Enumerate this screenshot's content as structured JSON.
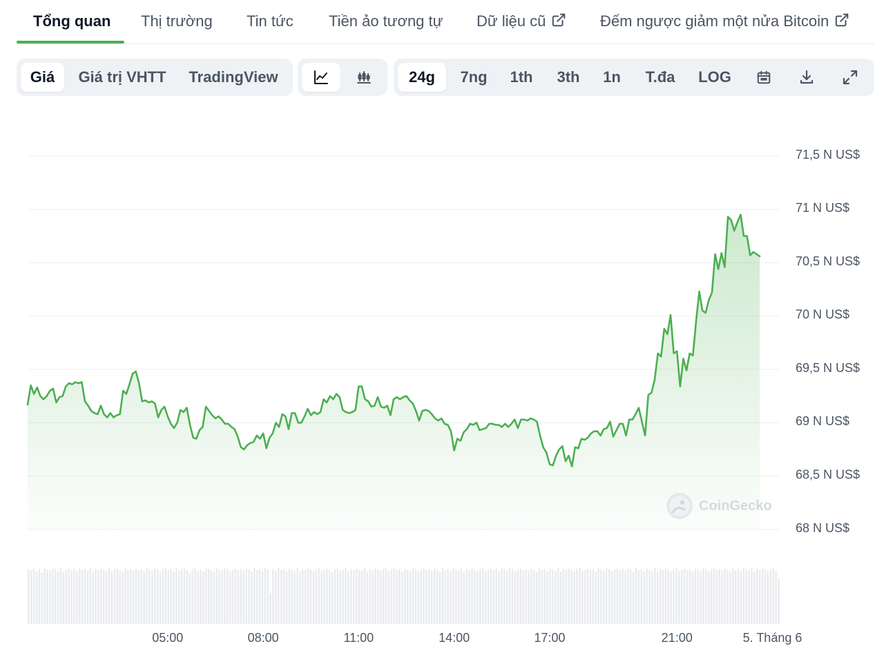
{
  "tabs": [
    {
      "label": "Tổng quan",
      "active": true
    },
    {
      "label": "Thị trường",
      "active": false
    },
    {
      "label": "Tin tức",
      "active": false
    },
    {
      "label": "Tiền ảo tương tự",
      "active": false
    },
    {
      "label": "Dữ liệu cũ",
      "active": false,
      "external": true
    },
    {
      "label": "Đếm ngược giảm một nửa Bitcoin",
      "active": false,
      "external": true
    }
  ],
  "toolbar": {
    "view_modes": [
      {
        "label": "Giá",
        "selected": true
      },
      {
        "label": "Giá trị VHTT",
        "selected": false
      },
      {
        "label": "TradingView",
        "selected": false
      }
    ],
    "chart_types": [
      {
        "icon": "line-chart-icon",
        "selected": true
      },
      {
        "icon": "candlestick-chart-icon",
        "selected": false
      }
    ],
    "ranges": [
      {
        "label": "24g",
        "selected": true
      },
      {
        "label": "7ng",
        "selected": false
      },
      {
        "label": "1th",
        "selected": false
      },
      {
        "label": "3th",
        "selected": false
      },
      {
        "label": "1n",
        "selected": false
      },
      {
        "label": "T.đa",
        "selected": false
      },
      {
        "label": "LOG",
        "selected": false
      }
    ],
    "actions": [
      {
        "icon": "calendar-icon"
      },
      {
        "icon": "download-icon"
      },
      {
        "icon": "expand-icon"
      }
    ]
  },
  "watermark": "CoinGecko",
  "chart_data": {
    "type": "area",
    "line_color": "#4caf50",
    "fill_color": "#4caf50",
    "y_ticks": [
      {
        "value": 71500,
        "label": "71,5 N US$"
      },
      {
        "value": 71000,
        "label": "71 N US$"
      },
      {
        "value": 70500,
        "label": "70,5 N US$"
      },
      {
        "value": 70000,
        "label": "70 N US$"
      },
      {
        "value": 69500,
        "label": "69,5 N US$"
      },
      {
        "value": 69000,
        "label": "69 N US$"
      },
      {
        "value": 68500,
        "label": "68,5 N US$"
      },
      {
        "value": 68000,
        "label": "68 N US$"
      }
    ],
    "ylim": [
      68000,
      71500
    ],
    "x_ticks": [
      {
        "hour": 5,
        "label": "05:00"
      },
      {
        "hour": 8,
        "label": "08:00"
      },
      {
        "hour": 11,
        "label": "11:00"
      },
      {
        "hour": 14,
        "label": "14:00"
      },
      {
        "hour": 17,
        "label": "17:00"
      },
      {
        "hour": 21,
        "label": "21:00"
      },
      {
        "hour": 24,
        "label": "5. Tháng 6"
      }
    ],
    "xlim": [
      0.6,
      24.25
    ],
    "price_series": [
      [
        0.6,
        69170
      ],
      [
        0.7,
        69350
      ],
      [
        0.8,
        69270
      ],
      [
        0.9,
        69330
      ],
      [
        1.0,
        69250
      ],
      [
        1.1,
        69220
      ],
      [
        1.2,
        69250
      ],
      [
        1.3,
        69300
      ],
      [
        1.4,
        69320
      ],
      [
        1.5,
        69190
      ],
      [
        1.6,
        69240
      ],
      [
        1.7,
        69250
      ],
      [
        1.8,
        69340
      ],
      [
        1.9,
        69370
      ],
      [
        2.0,
        69360
      ],
      [
        2.1,
        69380
      ],
      [
        2.2,
        69370
      ],
      [
        2.3,
        69380
      ],
      [
        2.4,
        69200
      ],
      [
        2.5,
        69160
      ],
      [
        2.6,
        69110
      ],
      [
        2.7,
        69090
      ],
      [
        2.8,
        69080
      ],
      [
        2.9,
        69160
      ],
      [
        3.0,
        69080
      ],
      [
        3.1,
        69050
      ],
      [
        3.2,
        69090
      ],
      [
        3.3,
        69050
      ],
      [
        3.4,
        69070
      ],
      [
        3.5,
        69080
      ],
      [
        3.6,
        69300
      ],
      [
        3.7,
        69270
      ],
      [
        3.8,
        69360
      ],
      [
        3.9,
        69460
      ],
      [
        4.0,
        69480
      ],
      [
        4.1,
        69370
      ],
      [
        4.2,
        69200
      ],
      [
        4.3,
        69210
      ],
      [
        4.4,
        69190
      ],
      [
        4.5,
        69200
      ],
      [
        4.6,
        69180
      ],
      [
        4.7,
        69050
      ],
      [
        4.8,
        69120
      ],
      [
        4.9,
        69150
      ],
      [
        5.0,
        69060
      ],
      [
        5.1,
        68990
      ],
      [
        5.2,
        68950
      ],
      [
        5.3,
        69000
      ],
      [
        5.4,
        69120
      ],
      [
        5.5,
        69100
      ],
      [
        5.6,
        69140
      ],
      [
        5.7,
        68980
      ],
      [
        5.8,
        68860
      ],
      [
        5.9,
        68850
      ],
      [
        6.0,
        68930
      ],
      [
        6.1,
        68960
      ],
      [
        6.2,
        69150
      ],
      [
        6.3,
        69110
      ],
      [
        6.4,
        69070
      ],
      [
        6.5,
        69040
      ],
      [
        6.6,
        69060
      ],
      [
        6.7,
        69030
      ],
      [
        6.8,
        68990
      ],
      [
        6.9,
        68990
      ],
      [
        7.0,
        68960
      ],
      [
        7.1,
        68940
      ],
      [
        7.2,
        68870
      ],
      [
        7.3,
        68770
      ],
      [
        7.4,
        68750
      ],
      [
        7.5,
        68790
      ],
      [
        7.6,
        68810
      ],
      [
        7.7,
        68820
      ],
      [
        7.8,
        68880
      ],
      [
        7.9,
        68850
      ],
      [
        8.0,
        68900
      ],
      [
        8.1,
        68760
      ],
      [
        8.2,
        68860
      ],
      [
        8.3,
        68900
      ],
      [
        8.4,
        69000
      ],
      [
        8.5,
        68960
      ],
      [
        8.6,
        69080
      ],
      [
        8.7,
        69060
      ],
      [
        8.8,
        68940
      ],
      [
        8.9,
        69090
      ],
      [
        9.0,
        69090
      ],
      [
        9.1,
        69000
      ],
      [
        9.2,
        69000
      ],
      [
        9.3,
        69060
      ],
      [
        9.4,
        69130
      ],
      [
        9.5,
        69070
      ],
      [
        9.6,
        69100
      ],
      [
        9.7,
        69080
      ],
      [
        9.8,
        69100
      ],
      [
        9.9,
        69220
      ],
      [
        10.0,
        69190
      ],
      [
        10.1,
        69250
      ],
      [
        10.2,
        69220
      ],
      [
        10.3,
        69270
      ],
      [
        10.4,
        69240
      ],
      [
        10.5,
        69120
      ],
      [
        10.6,
        69100
      ],
      [
        10.7,
        69090
      ],
      [
        10.8,
        69100
      ],
      [
        10.9,
        69120
      ],
      [
        11.0,
        69340
      ],
      [
        11.1,
        69340
      ],
      [
        11.2,
        69220
      ],
      [
        11.3,
        69200
      ],
      [
        11.4,
        69150
      ],
      [
        11.5,
        69160
      ],
      [
        11.6,
        69240
      ],
      [
        11.7,
        69150
      ],
      [
        11.8,
        69140
      ],
      [
        11.9,
        69160
      ],
      [
        12.0,
        69070
      ],
      [
        12.1,
        69220
      ],
      [
        12.2,
        69240
      ],
      [
        12.3,
        69220
      ],
      [
        12.4,
        69240
      ],
      [
        12.5,
        69250
      ],
      [
        12.6,
        69210
      ],
      [
        12.7,
        69180
      ],
      [
        12.8,
        69110
      ],
      [
        12.9,
        69020
      ],
      [
        13.0,
        69110
      ],
      [
        13.1,
        69120
      ],
      [
        13.2,
        69110
      ],
      [
        13.3,
        69080
      ],
      [
        13.4,
        69040
      ],
      [
        13.5,
        69020
      ],
      [
        13.6,
        69040
      ],
      [
        13.7,
        68990
      ],
      [
        13.8,
        68980
      ],
      [
        13.9,
        68920
      ],
      [
        14.0,
        68740
      ],
      [
        14.1,
        68850
      ],
      [
        14.2,
        68830
      ],
      [
        14.3,
        68910
      ],
      [
        14.4,
        68940
      ],
      [
        14.5,
        68990
      ],
      [
        14.6,
        68980
      ],
      [
        14.7,
        69000
      ],
      [
        14.8,
        68930
      ],
      [
        14.9,
        68940
      ],
      [
        15.0,
        68950
      ],
      [
        15.1,
        68990
      ],
      [
        15.2,
        68990
      ],
      [
        15.3,
        68980
      ],
      [
        15.4,
        68980
      ],
      [
        15.5,
        68960
      ],
      [
        15.6,
        68990
      ],
      [
        15.7,
        68960
      ],
      [
        15.8,
        68990
      ],
      [
        15.9,
        69030
      ],
      [
        16.0,
        68950
      ],
      [
        16.1,
        69030
      ],
      [
        16.2,
        69030
      ],
      [
        16.3,
        69020
      ],
      [
        16.4,
        69040
      ],
      [
        16.5,
        69030
      ],
      [
        16.6,
        69010
      ],
      [
        16.7,
        68880
      ],
      [
        16.8,
        68770
      ],
      [
        16.9,
        68720
      ],
      [
        17.0,
        68610
      ],
      [
        17.1,
        68600
      ],
      [
        17.2,
        68690
      ],
      [
        17.3,
        68750
      ],
      [
        17.4,
        68780
      ],
      [
        17.5,
        68640
      ],
      [
        17.6,
        68690
      ],
      [
        17.7,
        68590
      ],
      [
        17.8,
        68770
      ],
      [
        17.9,
        68760
      ],
      [
        18.0,
        68850
      ],
      [
        18.1,
        68840
      ],
      [
        18.2,
        68860
      ],
      [
        18.3,
        68900
      ],
      [
        18.4,
        68920
      ],
      [
        18.5,
        68920
      ],
      [
        18.6,
        68880
      ],
      [
        18.7,
        68940
      ],
      [
        18.8,
        68950
      ],
      [
        18.9,
        69010
      ],
      [
        19.0,
        68870
      ],
      [
        19.1,
        68930
      ],
      [
        19.2,
        68990
      ],
      [
        19.3,
        68990
      ],
      [
        19.4,
        68880
      ],
      [
        19.5,
        69030
      ],
      [
        19.6,
        69030
      ],
      [
        19.7,
        69080
      ],
      [
        19.8,
        69140
      ],
      [
        19.9,
        69010
      ],
      [
        20.0,
        68880
      ],
      [
        20.1,
        69260
      ],
      [
        20.2,
        69280
      ],
      [
        20.3,
        69400
      ],
      [
        20.4,
        69650
      ],
      [
        20.5,
        69620
      ],
      [
        20.6,
        69880
      ],
      [
        20.7,
        69830
      ],
      [
        20.8,
        70010
      ],
      [
        20.9,
        69650
      ],
      [
        21.0,
        69670
      ],
      [
        21.1,
        69340
      ],
      [
        21.2,
        69600
      ],
      [
        21.3,
        69490
      ],
      [
        21.4,
        69650
      ],
      [
        21.5,
        69630
      ],
      [
        21.6,
        69950
      ],
      [
        21.7,
        70230
      ],
      [
        21.8,
        70050
      ],
      [
        21.9,
        70030
      ],
      [
        22.0,
        70150
      ],
      [
        22.1,
        70220
      ],
      [
        22.2,
        70580
      ],
      [
        22.3,
        70440
      ],
      [
        22.4,
        70590
      ],
      [
        22.5,
        70460
      ],
      [
        22.6,
        70930
      ],
      [
        22.7,
        70900
      ],
      [
        22.8,
        70800
      ],
      [
        22.9,
        70880
      ],
      [
        23.0,
        70950
      ],
      [
        23.1,
        70750
      ],
      [
        23.2,
        70750
      ],
      [
        23.3,
        70570
      ],
      [
        23.4,
        70600
      ],
      [
        23.5,
        70580
      ],
      [
        23.6,
        70560
      ]
    ],
    "volume_series": [
      0.97,
      0.95,
      0.98,
      0.93,
      0.97,
      0.9,
      0.98,
      0.96,
      0.94,
      0.98,
      0.97,
      0.93,
      0.99,
      0.92,
      0.96,
      0.98,
      0.95,
      0.97,
      0.93,
      0.98,
      0.96,
      0.97,
      0.94,
      0.99,
      0.92,
      0.97,
      0.95,
      0.98,
      0.96,
      0.94,
      0.99,
      0.93,
      0.97,
      0.98,
      0.95,
      0.92,
      0.98,
      0.96,
      0.97,
      0.94,
      0.98,
      0.95,
      0.97,
      0.93,
      0.99,
      0.96,
      0.94,
      0.98,
      0.97,
      0.92,
      0.96,
      0.98,
      0.95,
      0.97,
      0.93,
      0.99,
      0.94,
      0.96,
      0.98,
      0.95,
      0.9,
      0.97,
      0.99,
      0.94,
      0.96,
      0.93,
      0.98,
      0.97,
      0.95,
      0.92,
      0.98,
      0.96,
      0.94,
      0.99,
      0.97,
      0.93,
      0.96,
      0.98,
      0.95,
      0.97,
      0.94,
      0.98,
      0.96,
      0.92,
      0.99,
      0.95,
      0.97,
      0.93,
      0.98,
      0.96,
      0.55,
      0.97,
      0.94,
      0.99,
      0.95,
      0.97,
      0.93,
      0.98,
      0.96,
      0.94,
      0.99,
      0.92,
      0.97,
      0.95,
      0.98,
      0.96,
      0.93,
      0.97,
      0.99,
      0.94,
      0.96,
      0.98,
      0.95,
      0.92,
      0.97,
      0.98,
      0.94,
      0.96,
      0.99,
      0.93,
      0.97,
      0.95,
      0.98,
      0.96,
      0.94,
      0.99,
      0.92,
      0.97,
      0.95,
      0.98,
      0.96,
      0.93,
      0.97,
      0.99,
      0.94,
      0.96,
      0.98,
      0.95,
      0.97,
      0.92,
      0.98,
      0.96,
      0.94,
      0.99,
      0.97,
      0.93,
      0.96,
      0.98,
      0.95,
      0.97,
      0.94,
      0.98,
      0.96,
      0.92,
      0.99,
      0.95,
      0.97,
      0.93,
      0.98,
      0.96,
      0.94,
      0.99,
      0.92,
      0.97,
      0.95,
      0.98,
      0.96,
      0.93,
      0.97,
      0.99,
      0.94,
      0.96,
      0.98,
      0.95,
      0.97,
      0.92,
      0.98,
      0.96,
      0.94,
      0.99,
      0.97,
      0.93,
      0.96,
      0.98,
      0.95,
      0.97,
      0.94,
      0.98,
      0.96,
      0.92,
      0.99,
      0.95,
      0.97,
      0.93,
      0.98,
      0.96,
      0.94,
      0.99,
      0.92,
      0.97,
      0.95,
      0.98,
      0.96,
      0.93,
      0.97,
      0.99,
      0.94,
      0.96,
      0.98,
      0.95,
      0.97,
      0.92,
      0.98,
      0.96,
      0.94,
      0.99,
      0.97,
      0.93,
      0.96,
      0.98,
      0.95,
      0.97,
      0.94,
      0.98,
      0.96,
      0.92,
      0.99,
      0.95,
      0.97,
      0.93,
      0.98,
      0.96,
      0.94,
      0.99,
      0.92,
      0.97,
      0.95,
      0.98,
      0.96,
      0.93,
      0.97,
      0.99,
      0.94,
      0.96,
      0.98,
      0.95,
      0.97,
      0.92,
      0.98,
      0.96,
      0.94,
      0.99,
      0.97,
      0.93,
      0.96,
      0.98,
      0.95,
      0.97,
      0.94,
      0.98,
      0.96,
      0.92,
      0.99,
      0.95,
      0.97,
      0.93,
      0.98,
      0.96,
      0.94,
      0.99,
      0.92,
      0.97,
      0.95,
      0.98,
      0.96,
      0.93,
      0.97,
      0.99,
      0.94,
      0.8
    ]
  }
}
